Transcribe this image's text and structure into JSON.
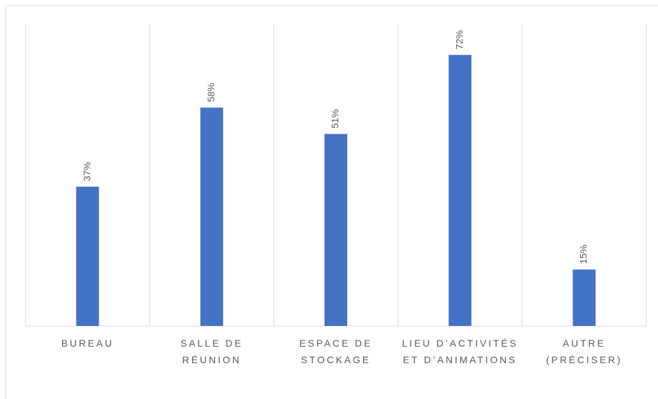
{
  "chart_data": {
    "type": "bar",
    "categories": [
      "BUREAU",
      "SALLE DE RÉUNION",
      "ESPACE DE STOCKAGE",
      "LIEU D’ACTIVITÉS ET D’ANIMATIONS",
      "AUTRE (PRÉCISER)"
    ],
    "values": [
      37,
      58,
      51,
      72,
      15
    ],
    "value_labels": [
      "37%",
      "58%",
      "51%",
      "72%",
      "15%"
    ],
    "color": "#4472c4",
    "ylim": [
      0,
      80
    ]
  }
}
